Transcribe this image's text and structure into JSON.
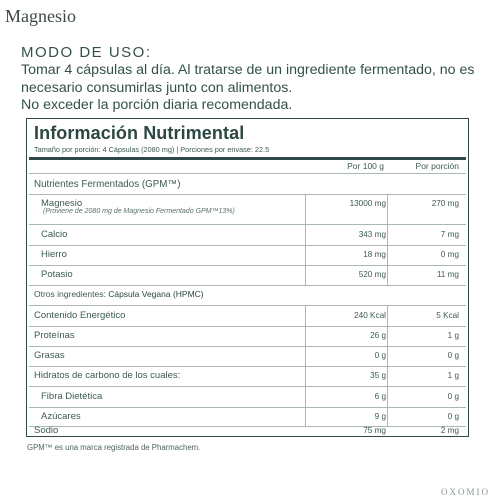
{
  "header": {
    "product_name": "Magnesio"
  },
  "usage": {
    "heading": "MODO DE USO:",
    "lines": [
      "Tomar 4 cápsulas al día. Al tratarse de un ingrediente fermentado, no es",
      "necesario consumirlas junto con alimentos.",
      "No exceder la porción diaria recomendada."
    ]
  },
  "nutrition": {
    "title": "Información Nutrimental",
    "serving": "Tamaño por porción: 4 Cápsulas (2080 mg) | Porciones por envase: 22.5",
    "col_per100": "Por 100 g",
    "col_perserving": "Por porción",
    "section_title": "Nutrientes Fermentados (GPM™)",
    "nutrients": [
      {
        "label": "Magnesio",
        "note": "(Proviene de 2080 mg de Magnesio Fermentado GPM™13%)",
        "per100": "13000 mg",
        "perserving": "270 mg"
      },
      {
        "label": "Calcio",
        "per100": "343 mg",
        "perserving": "7 mg"
      },
      {
        "label": "Hierro",
        "per100": "18 mg",
        "perserving": "0 mg"
      },
      {
        "label": "Potasio",
        "per100": "520 mg",
        "perserving": "11 mg"
      }
    ],
    "other_ingredients_label": "Otros ingredientes:",
    "other_ingredients_value": "Cápsula Vegana (HPMC)",
    "facts": [
      {
        "label": "Contenido Energético",
        "per100": "240 Kcal",
        "perserving": "5 Kcal"
      },
      {
        "label": "Proteínas",
        "per100": "26 g",
        "perserving": "1 g"
      },
      {
        "label": "Grasas",
        "per100": "0 g",
        "perserving": "0 g"
      },
      {
        "label": "Hidratos de carbono de los cuales:",
        "per100": "35 g",
        "perserving": "1 g"
      },
      {
        "label": "Fibra Dietética",
        "per100": "6 g",
        "perserving": "0 g"
      },
      {
        "label": "Azúcares",
        "per100": "9 g",
        "perserving": "0 g"
      },
      {
        "label": "Sodio",
        "per100": "75 mg",
        "perserving": "2 mg"
      }
    ]
  },
  "footnote": "GPM™ es una marca registrada de Pharmachem.",
  "brand": "OXOMIO"
}
